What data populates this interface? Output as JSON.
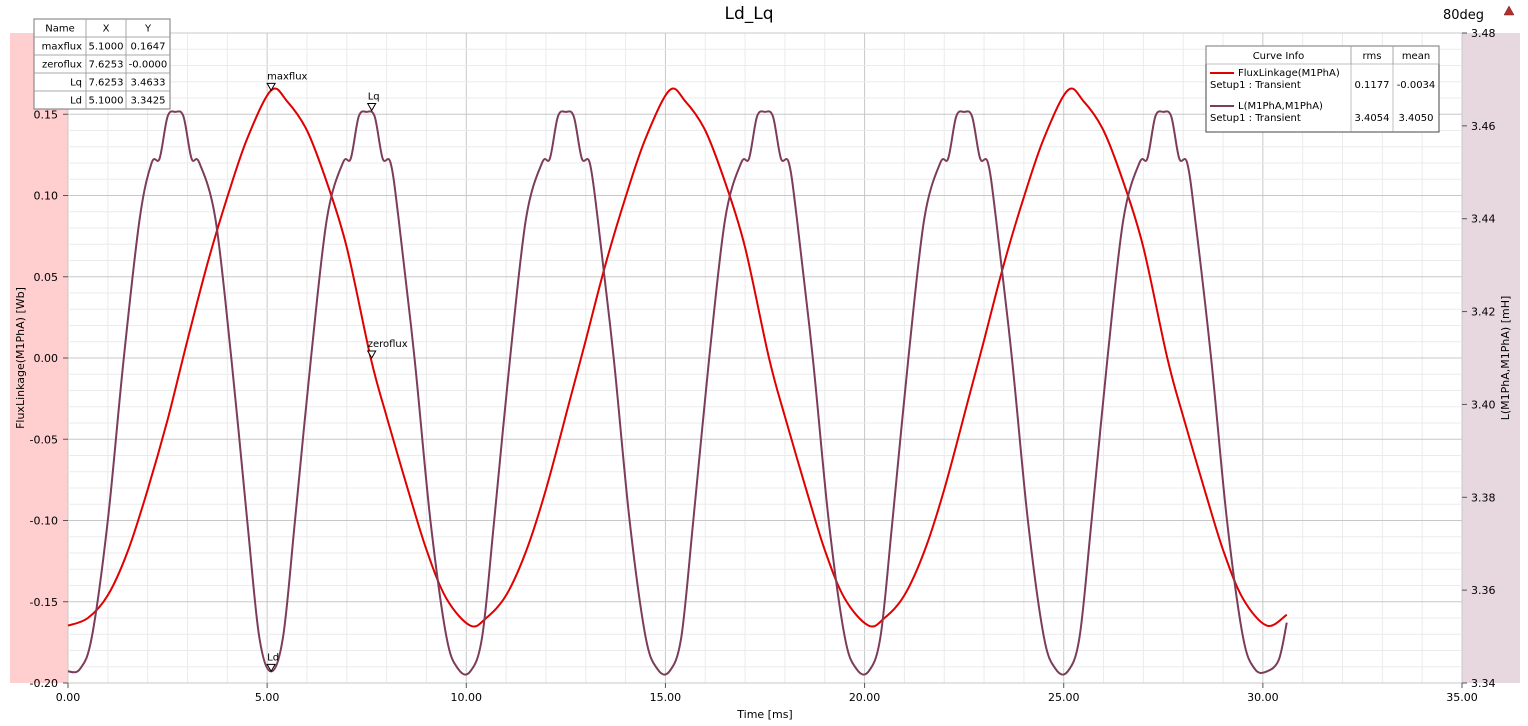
{
  "window": {
    "title": "Ld_Lq",
    "corner_label": "80deg"
  },
  "colors": {
    "flux": "#e10000",
    "inductance": "#7b3d5a",
    "left_band": "#ffcfcf",
    "right_band": "#e6d8de",
    "grid": "#d0d0d0"
  },
  "marker_table": {
    "headers": [
      "Name",
      "X",
      "Y"
    ],
    "rows": [
      [
        "maxflux",
        "5.1000",
        "0.1647"
      ],
      [
        "zeroflux",
        "7.6253",
        "-0.0000"
      ],
      [
        "Lq",
        "7.6253",
        "3.4633"
      ],
      [
        "Ld",
        "5.1000",
        "3.3425"
      ]
    ]
  },
  "curve_info": {
    "headers": [
      "Curve Info",
      "rms",
      "mean"
    ],
    "entries": [
      {
        "name": "FluxLinkage(M1PhA)",
        "sub": "Setup1 : Transient",
        "rms": "0.1177",
        "mean": "-0.0034",
        "color": "#e10000"
      },
      {
        "name": "L(M1PhA,M1PhA)",
        "sub": "Setup1 : Transient",
        "rms": "3.4054",
        "mean": "3.4050",
        "color": "#7b3d5a"
      }
    ]
  },
  "markers": [
    {
      "name": "maxflux",
      "x": 5.1,
      "y": 0.1647,
      "axis": "left"
    },
    {
      "name": "zeroflux",
      "x": 7.6253,
      "y": 0.0,
      "axis": "left"
    },
    {
      "name": "Lq",
      "x": 7.6253,
      "y": 3.4633,
      "axis": "right"
    },
    {
      "name": "Ld",
      "x": 5.1,
      "y": 3.3425,
      "axis": "right"
    }
  ],
  "chart_data": {
    "type": "line",
    "title": "Ld_Lq",
    "xlabel": "Time [ms]",
    "ylabel_left": "FluxLinkage(M1PhA) [Wb]",
    "ylabel_right": "L(M1PhA,M1PhA) [mH]",
    "xlim": [
      0,
      35
    ],
    "ylim_left": [
      -0.2,
      0.2
    ],
    "ylim_right": [
      3.34,
      3.48
    ],
    "x_ticks": [
      "0.00",
      "5.00",
      "10.00",
      "15.00",
      "20.00",
      "25.00",
      "30.00",
      "35.00"
    ],
    "y_ticks_left": [
      "-0.20",
      "-0.15",
      "-0.10",
      "-0.05",
      "0.00",
      "0.05",
      "0.10",
      "0.15"
    ],
    "y_ticks_right": [
      "3.34",
      "3.36",
      "3.38",
      "3.40",
      "3.42",
      "3.44",
      "3.46",
      "3.48"
    ],
    "grid": true,
    "series": [
      {
        "name": "FluxLinkage(M1PhA)",
        "axis": "left",
        "color": "#e10000",
        "x": [
          0.0,
          0.5,
          1.0,
          1.5,
          2.0,
          2.5,
          3.0,
          3.5,
          4.0,
          4.5,
          5.1,
          5.5,
          6.0,
          6.5,
          7.0,
          7.6,
          8.0,
          8.5,
          9.0,
          9.5,
          10.1,
          10.5,
          11.0,
          11.5,
          12.0,
          12.6,
          13.0,
          13.5,
          14.0,
          14.5,
          15.1,
          15.5,
          16.0,
          16.5,
          17.0,
          17.6,
          18.0,
          18.5,
          19.0,
          19.5,
          20.1,
          20.5,
          21.0,
          21.5,
          22.0,
          22.6,
          23.0,
          23.5,
          24.0,
          24.5,
          25.1,
          25.5,
          26.0,
          26.5,
          27.0,
          27.6,
          28.0,
          28.5,
          29.0,
          29.5,
          30.1,
          30.6
        ],
        "y": [
          -0.1647,
          -0.16,
          -0.146,
          -0.119,
          -0.081,
          -0.038,
          0.011,
          0.058,
          0.099,
          0.135,
          0.1647,
          0.158,
          0.14,
          0.108,
          0.068,
          0.0,
          -0.036,
          -0.078,
          -0.118,
          -0.148,
          -0.1647,
          -0.16,
          -0.146,
          -0.119,
          -0.081,
          -0.026,
          0.011,
          0.058,
          0.099,
          0.135,
          0.1647,
          0.158,
          0.14,
          0.108,
          0.068,
          0.0,
          -0.036,
          -0.078,
          -0.118,
          -0.148,
          -0.1647,
          -0.16,
          -0.146,
          -0.119,
          -0.081,
          -0.026,
          0.011,
          0.058,
          0.099,
          0.135,
          0.1647,
          0.158,
          0.14,
          0.108,
          0.068,
          0.0,
          -0.036,
          -0.078,
          -0.118,
          -0.148,
          -0.1647,
          -0.158
        ]
      },
      {
        "name": "L(M1PhA,M1PhA)",
        "axis": "right",
        "color": "#7b3d5a",
        "x": [
          0.0,
          0.3,
          0.6,
          1.0,
          1.4,
          1.8,
          2.1,
          2.3,
          2.5,
          2.7,
          2.9,
          3.1,
          3.3,
          3.7,
          4.1,
          4.5,
          4.8,
          5.1,
          5.4,
          5.7,
          6.1,
          6.5,
          6.9,
          7.1,
          7.3,
          7.5,
          7.7,
          7.9,
          8.1,
          8.3,
          8.7,
          9.1,
          9.5,
          9.8,
          10.1,
          10.4,
          10.7,
          11.1,
          11.5,
          11.9,
          12.1,
          12.3,
          12.5,
          12.7,
          12.9,
          13.1,
          13.3,
          13.7,
          14.1,
          14.5,
          14.8,
          15.1,
          15.4,
          15.7,
          16.1,
          16.5,
          16.9,
          17.1,
          17.3,
          17.5,
          17.7,
          17.9,
          18.1,
          18.3,
          18.7,
          19.1,
          19.5,
          19.8,
          20.1,
          20.4,
          20.7,
          21.1,
          21.5,
          21.9,
          22.1,
          22.3,
          22.5,
          22.7,
          22.9,
          23.1,
          23.3,
          23.7,
          24.1,
          24.5,
          24.8,
          25.1,
          25.4,
          25.7,
          26.1,
          26.5,
          26.9,
          27.1,
          27.3,
          27.5,
          27.7,
          27.9,
          28.1,
          28.3,
          28.7,
          29.1,
          29.5,
          29.8,
          30.1,
          30.4,
          30.6
        ],
        "y": [
          3.3425,
          3.343,
          3.35,
          3.375,
          3.41,
          3.44,
          3.452,
          3.453,
          3.462,
          3.463,
          3.462,
          3.453,
          3.452,
          3.44,
          3.41,
          3.375,
          3.35,
          3.3425,
          3.35,
          3.375,
          3.41,
          3.44,
          3.452,
          3.453,
          3.462,
          3.463,
          3.462,
          3.453,
          3.452,
          3.44,
          3.41,
          3.375,
          3.35,
          3.343,
          3.3425,
          3.35,
          3.375,
          3.41,
          3.44,
          3.452,
          3.453,
          3.462,
          3.463,
          3.462,
          3.453,
          3.452,
          3.44,
          3.41,
          3.375,
          3.35,
          3.343,
          3.3425,
          3.35,
          3.375,
          3.41,
          3.44,
          3.452,
          3.453,
          3.462,
          3.463,
          3.462,
          3.453,
          3.452,
          3.44,
          3.41,
          3.375,
          3.35,
          3.343,
          3.3425,
          3.35,
          3.375,
          3.41,
          3.44,
          3.452,
          3.453,
          3.462,
          3.463,
          3.462,
          3.453,
          3.452,
          3.44,
          3.41,
          3.375,
          3.35,
          3.343,
          3.3425,
          3.35,
          3.375,
          3.41,
          3.44,
          3.452,
          3.453,
          3.462,
          3.463,
          3.462,
          3.453,
          3.452,
          3.44,
          3.41,
          3.375,
          3.35,
          3.343,
          3.3425,
          3.345,
          3.353
        ]
      }
    ]
  }
}
